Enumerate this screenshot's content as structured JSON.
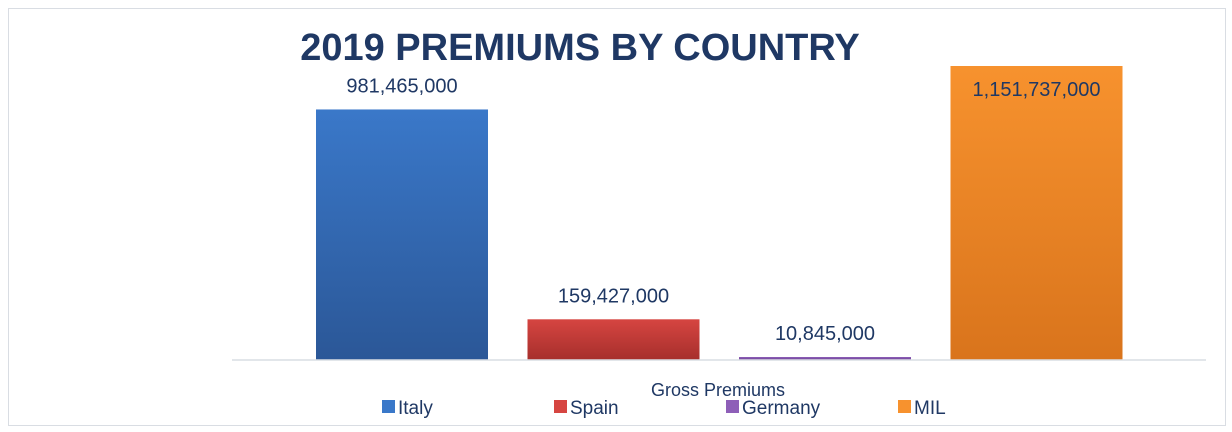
{
  "chart_data": {
    "type": "bar",
    "title": "2019 PREMIUMS BY COUNTRY",
    "xlabel": "Gross Premiums",
    "ylabel": "",
    "categories": [
      "Gross Premiums"
    ],
    "series": [
      {
        "name": "Italy",
        "values": [
          981465000
        ],
        "label": "981,465,000",
        "color": "#3a78c9",
        "color_dark": "#2b5797"
      },
      {
        "name": "Spain",
        "values": [
          159427000
        ],
        "label": "159,427,000",
        "color": "#d64541",
        "color_dark": "#a62f2c"
      },
      {
        "name": "Germany",
        "values": [
          10845000
        ],
        "label": "10,845,000",
        "color": "#8e5fb8",
        "color_dark": "#6a3f93"
      },
      {
        "name": "MIL",
        "values": [
          1151737000
        ],
        "label": "1,151,737,000",
        "color": "#f7922e",
        "color_dark": "#d9741c"
      }
    ],
    "ylim": [
      0,
      1151737000
    ],
    "grid": false,
    "legend_position": "bottom"
  }
}
